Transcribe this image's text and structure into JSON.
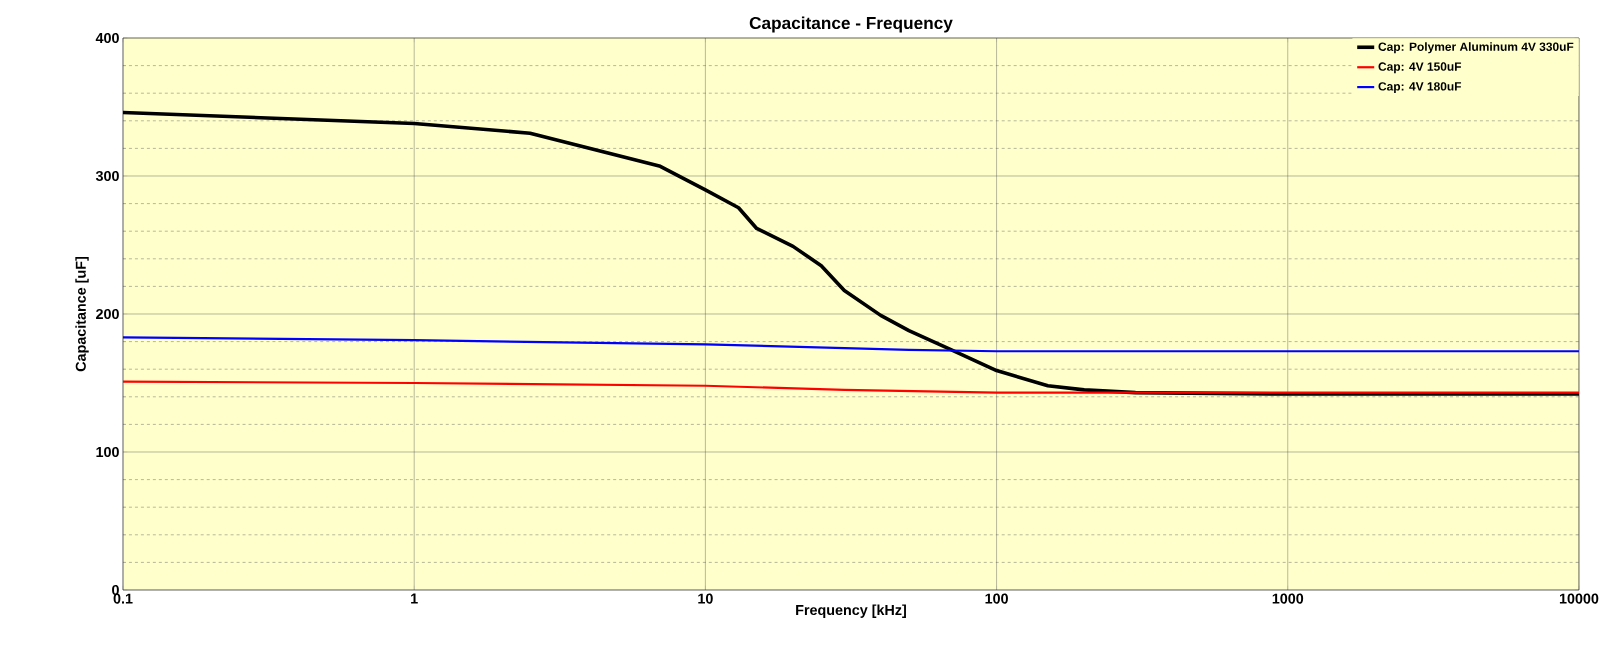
{
  "chart_data": {
    "type": "line",
    "title": "Capacitance - Frequency",
    "xlabel": "Frequency [kHz]",
    "ylabel": "Capacitance [uF]",
    "log": "x",
    "grid": true,
    "legend": "top right",
    "marker": "none",
    "line_style": "solid",
    "xlim": [
      0.1,
      10000
    ],
    "xticks": [
      0.1,
      1,
      10,
      100,
      1000,
      10000
    ],
    "ylim": [
      0,
      400
    ],
    "yticks": [
      0,
      100,
      200,
      300,
      400
    ],
    "series": [
      {
        "name": "Cap: Polymer Aluminum 4V 330uF",
        "color": "#000000",
        "x": [
          0.1,
          1,
          2.5,
          7,
          10,
          13,
          15,
          20,
          25,
          30,
          40,
          50,
          70,
          100,
          150,
          200,
          300,
          1000,
          10000
        ],
        "values": [
          346,
          338,
          331,
          307,
          290,
          277,
          262,
          249,
          235,
          217,
          199,
          188,
          174,
          159,
          148,
          145,
          143,
          142,
          142
        ]
      },
      {
        "name": "Cap: 4V 150uF",
        "color": "#ff0000",
        "x": [
          0.1,
          1,
          10,
          30,
          100,
          1000,
          10000
        ],
        "values": [
          151,
          150,
          148,
          145,
          143,
          143,
          143
        ]
      },
      {
        "name": "Cap: 4V 180uF",
        "color": "#0000ff",
        "x": [
          0.1,
          1,
          10,
          50,
          100,
          1000,
          10000
        ],
        "values": [
          183,
          181,
          178,
          174,
          173,
          173,
          173
        ]
      }
    ]
  }
}
